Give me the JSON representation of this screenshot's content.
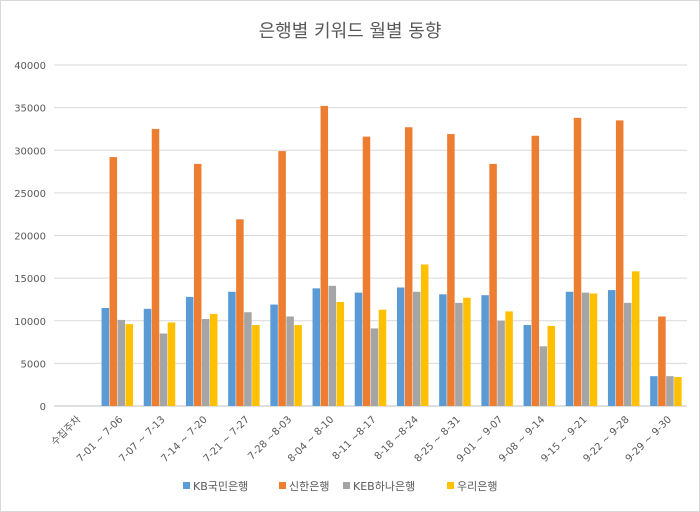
{
  "chart_data": {
    "type": "bar",
    "title": "은행별 키워드 월별 동향",
    "xlabel": "",
    "ylabel": "",
    "ylim": [
      0,
      40000
    ],
    "yticks": [
      0,
      5000,
      10000,
      15000,
      20000,
      25000,
      30000,
      35000,
      40000
    ],
    "grid": true,
    "legend_position": "bottom",
    "categories": [
      "수집주차",
      "7-01 ~ 7-06",
      "7-07 ~ 7-13",
      "7-14 ~ 7-20",
      "7-21 ~ 7-27",
      "7-28 ~8-03",
      "8-04 ~ 8-10",
      "8-11 ~8-17",
      "8-18 ~8-24",
      "8-25 ~ 8-31",
      "9-01 ~ 9-07",
      "9-08 ~ 9-14",
      "9-15 ~ 9-21",
      "9-22 ~ 9-28",
      "9-29 ~ 9-30"
    ],
    "series": [
      {
        "name": "KB국민은행",
        "color": "#5B9BD5",
        "values": [
          null,
          11500,
          11400,
          12800,
          13400,
          11900,
          13800,
          13300,
          13900,
          13100,
          13000,
          9500,
          13400,
          13600,
          3500
        ]
      },
      {
        "name": "신한은행",
        "color": "#ED7D31",
        "values": [
          null,
          29200,
          32500,
          28400,
          21900,
          29900,
          35200,
          31600,
          32700,
          31900,
          28400,
          31700,
          33800,
          33500,
          10500
        ]
      },
      {
        "name": "KEB하나은행",
        "color": "#A5A5A5",
        "values": [
          null,
          10100,
          8500,
          10200,
          11000,
          10500,
          14100,
          9100,
          13400,
          12100,
          10000,
          7000,
          13300,
          12100,
          3500
        ]
      },
      {
        "name": "우리은행",
        "color": "#FFC000",
        "values": [
          null,
          9600,
          9800,
          10800,
          9500,
          9500,
          12200,
          11300,
          16600,
          12700,
          11100,
          9400,
          13200,
          15800,
          3400
        ]
      }
    ]
  }
}
